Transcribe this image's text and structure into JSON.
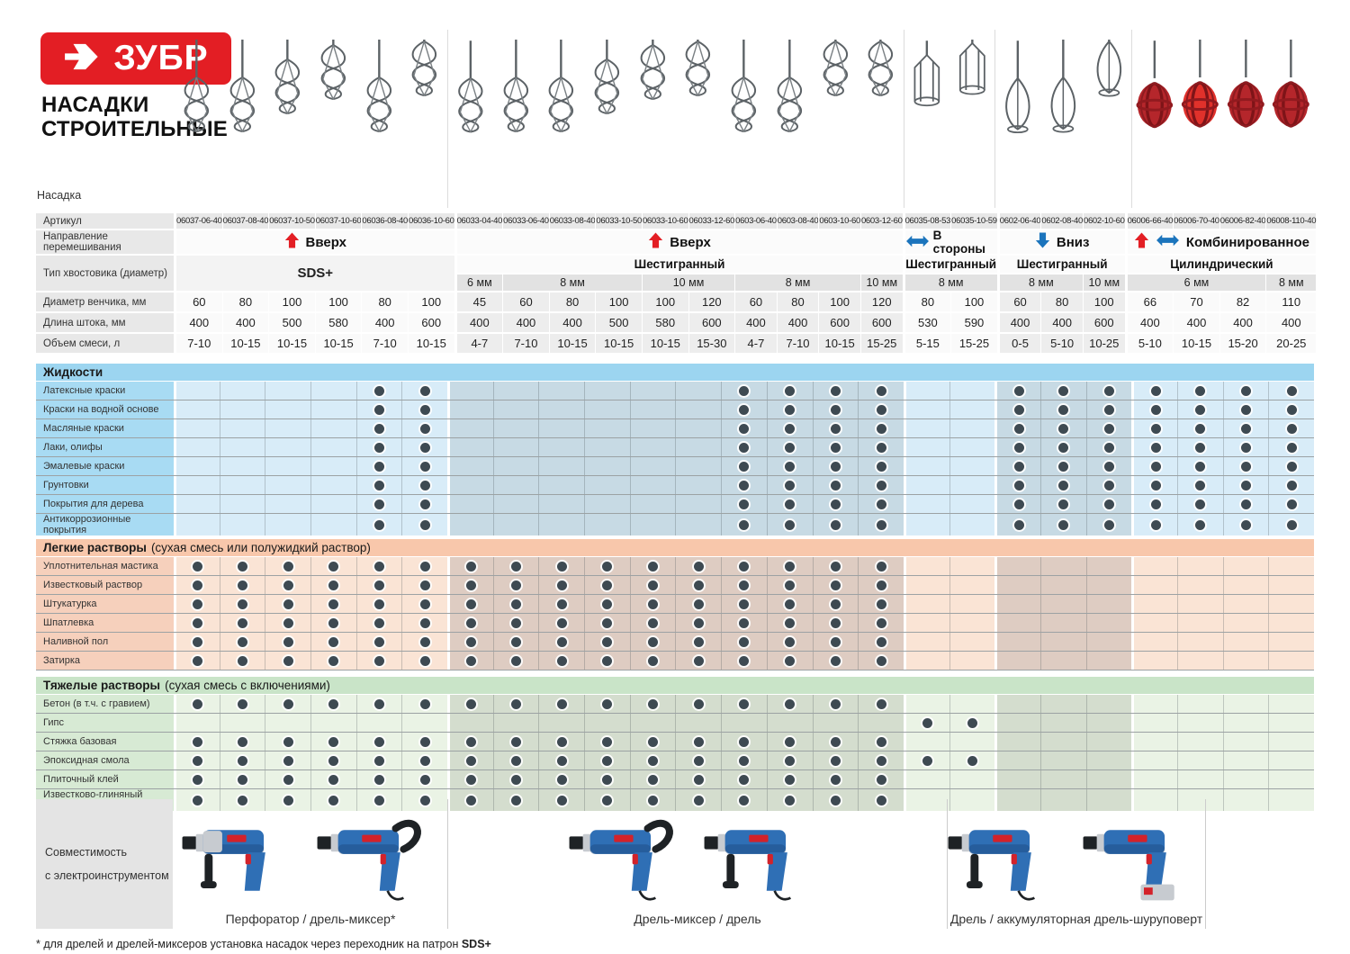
{
  "brand": {
    "logo_text": "ЗУБР",
    "title_line1": "НАСАДКИ",
    "title_line2": "СТРОИТЕЛЬНЫЕ"
  },
  "labels": {
    "nasadka": "Насадка",
    "article": "Артикул",
    "direction": "Направление перемешивания",
    "shank": "Тип хвостовика (диаметр)",
    "whisk_diameter": "Диаметр венчика, мм",
    "rod_length": "Длина штока, мм",
    "mix_volume": "Объем смеси, л",
    "compat_line1": "Совместимость",
    "compat_line2": "с электроинструментом"
  },
  "colors": {
    "brand_red": "#E31E24",
    "arrow_blue": "#1B74BC",
    "dot": "#3E4A52",
    "schemes": {
      "blue": {
        "header": "#9CD5F0",
        "label": "#A8DBF3",
        "light": "#D8ECF8",
        "dark": "#C7DAE4"
      },
      "orange": {
        "header": "#F8C7AB",
        "label": "#F6D0BC",
        "light": "#FAE4D5",
        "dark": "#DECCC2"
      },
      "green": {
        "header": "#C9E4C8",
        "label": "#D7EAD4",
        "light": "#EAF3E5",
        "dark": "#D4DDCE"
      }
    }
  },
  "groups": [
    {
      "direction": "Вверх",
      "arrows": [
        "up"
      ],
      "shank_type": "SDS+",
      "shank_merged": true,
      "cols": 6,
      "sizes": [],
      "attachment": "spiral",
      "tint": "light"
    },
    {
      "direction": "Вверх",
      "arrows": [
        "up"
      ],
      "shank_type": "Шестигранный",
      "shank_merged": false,
      "cols": 10,
      "sizes": [
        [
          "6 мм",
          1
        ],
        [
          "8 мм",
          3
        ],
        [
          "10 мм",
          2
        ],
        [
          "8 мм",
          3
        ],
        [
          "10 мм",
          1
        ]
      ],
      "attachment": "spiral",
      "tint": "dark"
    },
    {
      "direction": "В стороны",
      "arrows": [
        "lr"
      ],
      "shank_type": "Шестигранный",
      "shank_merged": false,
      "cols": 2,
      "sizes": [
        [
          "8 мм",
          2
        ]
      ],
      "attachment": "cage",
      "tint": "light"
    },
    {
      "direction": "Вниз",
      "arrows": [
        "down"
      ],
      "shank_type": "Шестигранный",
      "shank_merged": false,
      "cols": 3,
      "sizes": [
        [
          "8 мм",
          2
        ],
        [
          "10 мм",
          1
        ]
      ],
      "attachment": "teardrop",
      "tint": "dark"
    },
    {
      "direction": "Комбинированное",
      "arrows": [
        "up",
        "lr"
      ],
      "shank_type": "Цилиндрический",
      "shank_merged": false,
      "cols": 4,
      "sizes": [
        [
          "6 мм",
          3
        ],
        [
          "8 мм",
          1
        ]
      ],
      "attachment": "ball",
      "tint": "light"
    }
  ],
  "columns": [
    {
      "article": "06037-06-40",
      "diameter": "60",
      "length": "400",
      "volume": "7-10"
    },
    {
      "article": "06037-08-40",
      "diameter": "80",
      "length": "400",
      "volume": "10-15"
    },
    {
      "article": "06037-10-50",
      "diameter": "100",
      "length": "500",
      "volume": "10-15"
    },
    {
      "article": "06037-10-60",
      "diameter": "100",
      "length": "580",
      "volume": "10-15"
    },
    {
      "article": "06036-08-40",
      "diameter": "80",
      "length": "400",
      "volume": "7-10"
    },
    {
      "article": "06036-10-60",
      "diameter": "100",
      "length": "600",
      "volume": "10-15"
    },
    {
      "article": "06033-04-40",
      "diameter": "45",
      "length": "400",
      "volume": "4-7"
    },
    {
      "article": "06033-06-40",
      "diameter": "60",
      "length": "400",
      "volume": "7-10"
    },
    {
      "article": "06033-08-40",
      "diameter": "80",
      "length": "400",
      "volume": "10-15"
    },
    {
      "article": "06033-10-50",
      "diameter": "100",
      "length": "500",
      "volume": "10-15"
    },
    {
      "article": "06033-10-60",
      "diameter": "100",
      "length": "580",
      "volume": "10-15"
    },
    {
      "article": "06033-12-60",
      "diameter": "120",
      "length": "600",
      "volume": "15-30"
    },
    {
      "article": "0603-06-40",
      "diameter": "60",
      "length": "400",
      "volume": "4-7"
    },
    {
      "article": "0603-08-40",
      "diameter": "80",
      "length": "400",
      "volume": "7-10"
    },
    {
      "article": "0603-10-60",
      "diameter": "100",
      "length": "600",
      "volume": "10-15"
    },
    {
      "article": "0603-12-60",
      "diameter": "120",
      "length": "600",
      "volume": "15-25"
    },
    {
      "article": "06035-08-53",
      "diameter": "80",
      "length": "530",
      "volume": "5-15"
    },
    {
      "article": "06035-10-59",
      "diameter": "100",
      "length": "590",
      "volume": "15-25"
    },
    {
      "article": "0602-06-40",
      "diameter": "60",
      "length": "400",
      "volume": "0-5"
    },
    {
      "article": "0602-08-40",
      "diameter": "80",
      "length": "400",
      "volume": "5-10"
    },
    {
      "article": "0602-10-60",
      "diameter": "100",
      "length": "600",
      "volume": "10-25"
    },
    {
      "article": "06006-66-40",
      "diameter": "66",
      "length": "400",
      "volume": "5-10"
    },
    {
      "article": "06006-70-40",
      "diameter": "70",
      "length": "400",
      "volume": "10-15"
    },
    {
      "article": "06006-82-40",
      "diameter": "82",
      "length": "400",
      "volume": "15-20"
    },
    {
      "article": "06008-110-40",
      "diameter": "110",
      "length": "400",
      "volume": "20-25"
    }
  ],
  "sections": [
    {
      "title": "Жидкости",
      "subtitle": "",
      "scheme": "blue",
      "rows": [
        {
          "label": "Латексные краски",
          "dots": "0000110000001111001111111"
        },
        {
          "label": "Краски на водной основе",
          "dots": "0000110000001111001111111"
        },
        {
          "label": "Масляные краски",
          "dots": "0000110000001111001111111"
        },
        {
          "label": "Лаки, олифы",
          "dots": "0000110000001111001111111"
        },
        {
          "label": "Эмалевые краски",
          "dots": "0000110000001111001111111"
        },
        {
          "label": "Грунтовки",
          "dots": "0000110000001111001111111"
        },
        {
          "label": "Покрытия для дерева",
          "dots": "0000110000001111001111111"
        },
        {
          "label": "Антикоррозионные покрытия",
          "dots": "0000110000001111001111111"
        }
      ]
    },
    {
      "title": "Легкие растворы",
      "subtitle": "(сухая смесь или полужидкий раствор)",
      "scheme": "orange",
      "rows": [
        {
          "label": "Уплотнительная мастика",
          "dots": "1111111111111111000000000"
        },
        {
          "label": "Известковый раствор",
          "dots": "1111111111111111000000000"
        },
        {
          "label": "Штукатурка",
          "dots": "1111111111111111000000000"
        },
        {
          "label": "Шпатлевка",
          "dots": "1111111111111111000000000"
        },
        {
          "label": "Наливной пол",
          "dots": "1111111111111111000000000"
        },
        {
          "label": "Затирка",
          "dots": "1111111111111111000000000"
        }
      ]
    },
    {
      "title": "Тяжелые растворы",
      "subtitle": "(сухая смесь с включениями)",
      "scheme": "green",
      "rows": [
        {
          "label": "Бетон (в т.ч. с гравием)",
          "dots": "1111111111111111000000000"
        },
        {
          "label": "Гипс",
          "dots": "0000000000000000110000000"
        },
        {
          "label": "Стяжка базовая",
          "dots": "1111111111111111000000000"
        },
        {
          "label": "Эпоксидная смола",
          "dots": "1111111111111111110000000"
        },
        {
          "label": "Плиточный клей",
          "dots": "1111111111111111000000000"
        },
        {
          "label": "Известково-глиняный раствор",
          "dots": "1111111111111111000000000"
        }
      ]
    }
  ],
  "bottom": {
    "zones": [
      {
        "label": "Перфоратор / дрель-миксер*",
        "tools": [
          "perforator",
          "mixer"
        ]
      },
      {
        "label": "Дрель-миксер / дрель",
        "tools": [
          "mixer",
          "drill"
        ]
      },
      {
        "label": "Дрель / аккумуляторная дрель-шуруповерт",
        "tools": [
          "drill",
          "cordless"
        ]
      }
    ]
  },
  "footnote": {
    "text": "* для дрелей и дрелей-миксеров установка насадок через переходник на патрон ",
    "bold": "SDS+"
  }
}
